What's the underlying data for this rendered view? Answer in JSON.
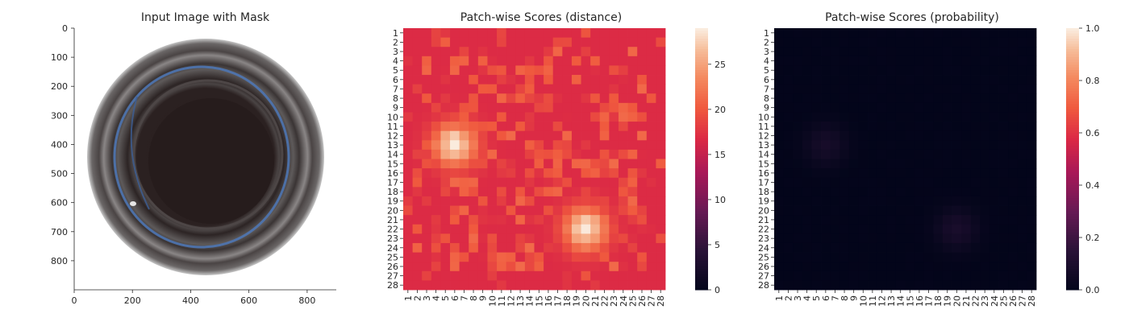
{
  "chart_data": [
    {
      "type": "image",
      "title": "Input Image with Mask",
      "xticks": [
        0,
        200,
        400,
        600,
        800
      ],
      "yticks": [
        0,
        100,
        200,
        300,
        400,
        500,
        600,
        700,
        800
      ],
      "xlim": [
        0,
        900
      ],
      "ylim": [
        900,
        0
      ],
      "content": "top view of dark glass jar with blue highlighted ring mask"
    },
    {
      "type": "heatmap",
      "title": "Patch-wise Scores (distance)",
      "x_categories": [
        "1",
        "2",
        "3",
        "4",
        "5",
        "6",
        "7",
        "8",
        "9",
        "10",
        "11",
        "12",
        "13",
        "14",
        "15",
        "16",
        "17",
        "18",
        "19",
        "20",
        "21",
        "22",
        "23",
        "24",
        "25",
        "26",
        "27",
        "28"
      ],
      "y_categories": [
        "1",
        "2",
        "3",
        "4",
        "5",
        "6",
        "7",
        "8",
        "9",
        "10",
        "11",
        "12",
        "13",
        "14",
        "15",
        "16",
        "17",
        "18",
        "19",
        "20",
        "21",
        "22",
        "23",
        "24",
        "25",
        "26",
        "27",
        "28"
      ],
      "colorbar_ticks": [
        0,
        5,
        10,
        15,
        20,
        25
      ],
      "vmin": 0,
      "vmax": 29,
      "colormap": "rocket",
      "baseline": 17,
      "hotspots": [
        {
          "row": 13,
          "col": 6,
          "peak": 29,
          "note": "high distance cluster"
        },
        {
          "row": 22,
          "col": 20,
          "peak": 29,
          "note": "high distance cluster"
        }
      ]
    },
    {
      "type": "heatmap",
      "title": "Patch-wise Scores (probability)",
      "x_categories": [
        "1",
        "2",
        "3",
        "4",
        "5",
        "6",
        "7",
        "8",
        "9",
        "10",
        "11",
        "12",
        "13",
        "14",
        "15",
        "16",
        "17",
        "18",
        "19",
        "20",
        "21",
        "22",
        "23",
        "24",
        "25",
        "26",
        "27",
        "28"
      ],
      "y_categories": [
        "1",
        "2",
        "3",
        "4",
        "5",
        "6",
        "7",
        "8",
        "9",
        "10",
        "11",
        "12",
        "13",
        "14",
        "15",
        "16",
        "17",
        "18",
        "19",
        "20",
        "21",
        "22",
        "23",
        "24",
        "25",
        "26",
        "27",
        "28"
      ],
      "colorbar_ticks": [
        "0.0",
        "0.2",
        "0.4",
        "0.6",
        "0.8",
        "1.0"
      ],
      "vmin": 0,
      "vmax": 1,
      "colormap": "rocket",
      "baseline": 0.0,
      "hotspots": [
        {
          "row": 13,
          "col": 6,
          "peak": 0.08
        },
        {
          "row": 22,
          "col": 20,
          "peak": 0.09
        }
      ]
    }
  ]
}
